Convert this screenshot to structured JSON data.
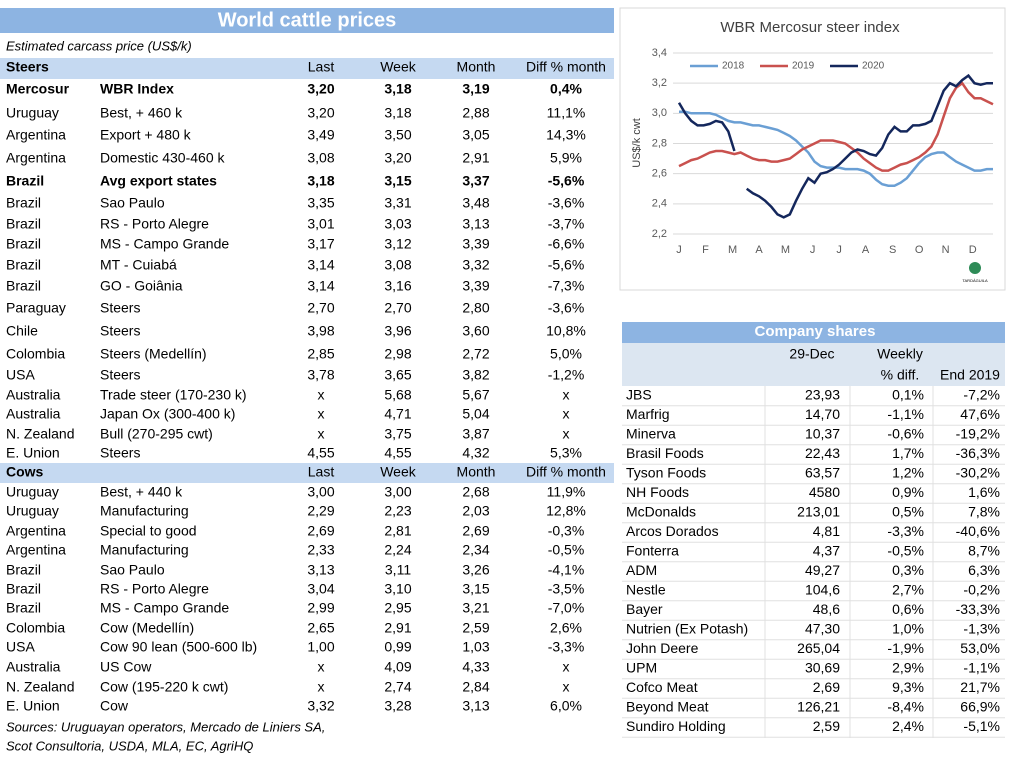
{
  "prices_table": {
    "title": "World cattle prices",
    "subtitle": "Estimated carcass price (US$/k)",
    "sections": [
      {
        "label": "Steers",
        "columns": [
          "Last",
          "Week",
          "Month",
          "Diff % month"
        ],
        "bold_rows": [
          0,
          4
        ],
        "rows": [
          [
            "Mercosur",
            "WBR Index",
            "3,20",
            "3,18",
            "3,19",
            "0,4%"
          ],
          [
            "Uruguay",
            "Best, + 460 k",
            "3,20",
            "3,18",
            "2,88",
            "11,1%"
          ],
          [
            "Argentina",
            "Export + 480 k",
            "3,49",
            "3,50",
            "3,05",
            "14,3%"
          ],
          [
            "Argentina",
            "Domestic 430-460 k",
            "3,08",
            "3,20",
            "2,91",
            "5,9%"
          ],
          [
            "Brazil",
            "Avg export states",
            "3,18",
            "3,15",
            "3,37",
            "-5,6%"
          ],
          [
            "Brazil",
            "Sao Paulo",
            "3,35",
            "3,31",
            "3,48",
            "-3,6%"
          ],
          [
            "Brazil",
            "RS - Porto Alegre",
            "3,01",
            "3,03",
            "3,13",
            "-3,7%"
          ],
          [
            "Brazil",
            "MS - Campo Grande",
            "3,17",
            "3,12",
            "3,39",
            "-6,6%"
          ],
          [
            "Brazil",
            "MT - Cuiabá",
            "3,14",
            "3,08",
            "3,32",
            "-5,6%"
          ],
          [
            "Brazil",
            "GO - Goiânia",
            "3,14",
            "3,16",
            "3,39",
            "-7,3%"
          ],
          [
            "Paraguay",
            "Steers",
            "2,70",
            "2,70",
            "2,80",
            "-3,6%"
          ],
          [
            "Chile",
            "Steers",
            "3,98",
            "3,96",
            "3,60",
            "10,8%"
          ],
          [
            "Colombia",
            "Steers (Medellín)",
            "2,85",
            "2,98",
            "2,72",
            "5,0%"
          ],
          [
            "USA",
            "Steers",
            "3,78",
            "3,65",
            "3,82",
            "-1,2%"
          ],
          [
            "Australia",
            "Trade steer (170-230 k)",
            "x",
            "5,68",
            "5,67",
            "x"
          ],
          [
            "Australia",
            "Japan Ox (300-400 k)",
            "x",
            "4,71",
            "5,04",
            "x"
          ],
          [
            "N. Zealand",
            "Bull (270-295 cwt)",
            "x",
            "3,75",
            "3,87",
            "x"
          ],
          [
            "E. Union",
            "Steers",
            "4,55",
            "4,55",
            "4,32",
            "5,3%"
          ]
        ]
      },
      {
        "label": "Cows",
        "columns": [
          "Last",
          "Week",
          "Month",
          "Diff % month"
        ],
        "bold_rows": [],
        "rows": [
          [
            "Uruguay",
            "Best, + 440 k",
            "3,00",
            "3,00",
            "2,68",
            "11,9%"
          ],
          [
            "Uruguay",
            "Manufacturing",
            "2,29",
            "2,23",
            "2,03",
            "12,8%"
          ],
          [
            "Argentina",
            "Special to good",
            "2,69",
            "2,81",
            "2,69",
            "-0,3%"
          ],
          [
            "Argentina",
            "Manufacturing",
            "2,33",
            "2,24",
            "2,34",
            "-0,5%"
          ],
          [
            "Brazil",
            "Sao Paulo",
            "3,13",
            "3,11",
            "3,26",
            "-4,1%"
          ],
          [
            "Brazil",
            "RS - Porto Alegre",
            "3,04",
            "3,10",
            "3,15",
            "-3,5%"
          ],
          [
            "Brazil",
            "MS - Campo Grande",
            "2,99",
            "2,95",
            "3,21",
            "-7,0%"
          ],
          [
            "Colombia",
            "Cow (Medellín)",
            "2,65",
            "2,91",
            "2,59",
            "2,6%"
          ],
          [
            "USA",
            "Cow 90 lean (500-600 lb)",
            "1,00",
            "0,99",
            "1,03",
            "-3,3%"
          ],
          [
            "Australia",
            "US Cow",
            "x",
            "4,09",
            "4,33",
            "x"
          ],
          [
            "N. Zealand",
            "Cow (195-220 k cwt)",
            "x",
            "2,74",
            "2,84",
            "x"
          ],
          [
            "E. Union",
            "Cow",
            "3,32",
            "3,28",
            "3,13",
            "6,0%"
          ]
        ]
      }
    ],
    "sources": [
      "Sources: Uruguayan operators, Mercado de Liniers SA,",
      "Scot Consultoria, USDA, MLA, EC, AgriHQ"
    ]
  },
  "chart_data": {
    "type": "line",
    "title": "WBR Mercosur steer index",
    "y_label": "US$/k cwt",
    "logo": "TARDÁGUILA",
    "grid": true,
    "legend": "top",
    "x": [
      1,
      2,
      3,
      4,
      5,
      6,
      7,
      8,
      9,
      10,
      11,
      12,
      13,
      14,
      15,
      16,
      17,
      18,
      19,
      20,
      21,
      22,
      23,
      24,
      25,
      26,
      27,
      28,
      29,
      30,
      31,
      32,
      33,
      34,
      35,
      36,
      37,
      38,
      39,
      40,
      41,
      42,
      43,
      44,
      45,
      46,
      47,
      48,
      49,
      50,
      51,
      52
    ],
    "xlim": [
      1,
      52
    ],
    "xticks": [
      {
        "value": 1,
        "label": "J"
      },
      {
        "value": 5.3,
        "label": "F"
      },
      {
        "value": 9.7,
        "label": "M"
      },
      {
        "value": 14,
        "label": "A"
      },
      {
        "value": 18.3,
        "label": "M"
      },
      {
        "value": 22.7,
        "label": "J"
      },
      {
        "value": 27,
        "label": "J"
      },
      {
        "value": 31.3,
        "label": "A"
      },
      {
        "value": 35.7,
        "label": "S"
      },
      {
        "value": 40,
        "label": "O"
      },
      {
        "value": 44.3,
        "label": "N"
      },
      {
        "value": 48.7,
        "label": "D"
      }
    ],
    "ylim": [
      2.2,
      3.4
    ],
    "yticks": [
      {
        "value": 2.2,
        "label": "2,2"
      },
      {
        "value": 2.4,
        "label": "2,4"
      },
      {
        "value": 2.6,
        "label": "2,6"
      },
      {
        "value": 2.8,
        "label": "2,8"
      },
      {
        "value": 3.0,
        "label": "3,0"
      },
      {
        "value": 3.2,
        "label": "3,2"
      },
      {
        "value": 3.4,
        "label": "3,4"
      }
    ],
    "series": [
      {
        "name": "2018",
        "color": "#6a9fd4",
        "values": [
          3.01,
          3.01,
          3.0,
          3.0,
          3.0,
          3.0,
          2.99,
          2.97,
          2.95,
          2.94,
          2.94,
          2.93,
          2.92,
          2.92,
          2.91,
          2.9,
          2.89,
          2.87,
          2.85,
          2.82,
          2.78,
          2.74,
          2.68,
          2.65,
          2.64,
          2.64,
          2.64,
          2.63,
          2.63,
          2.63,
          2.62,
          2.6,
          2.56,
          2.53,
          2.52,
          2.52,
          2.54,
          2.57,
          2.62,
          2.67,
          2.71,
          2.73,
          2.74,
          2.74,
          2.71,
          2.68,
          2.66,
          2.64,
          2.62,
          2.62,
          2.63,
          2.63
        ]
      },
      {
        "name": "2019",
        "color": "#c9514e",
        "values": [
          2.65,
          2.67,
          2.69,
          2.7,
          2.72,
          2.74,
          2.75,
          2.75,
          2.74,
          2.73,
          2.74,
          2.72,
          2.7,
          2.69,
          2.69,
          2.68,
          2.68,
          2.69,
          2.7,
          2.73,
          2.76,
          2.78,
          2.8,
          2.82,
          2.82,
          2.82,
          2.81,
          2.8,
          2.77,
          2.74,
          2.7,
          2.67,
          2.64,
          2.62,
          2.62,
          2.64,
          2.66,
          2.67,
          2.69,
          2.71,
          2.74,
          2.78,
          2.86,
          2.98,
          3.1,
          3.17,
          3.2,
          3.14,
          3.1,
          3.1,
          3.08,
          3.06
        ]
      },
      {
        "name": "2020",
        "color": "#14275c",
        "values": [
          3.07,
          3.0,
          2.95,
          2.92,
          2.92,
          2.93,
          2.95,
          2.94,
          2.88,
          2.75,
          null,
          2.5,
          2.47,
          2.45,
          2.42,
          2.38,
          2.33,
          2.31,
          2.33,
          2.42,
          2.5,
          2.57,
          2.54,
          2.6,
          2.61,
          2.63,
          2.66,
          2.7,
          2.74,
          2.76,
          2.75,
          2.73,
          2.72,
          2.77,
          2.86,
          2.91,
          2.88,
          2.88,
          2.92,
          2.92,
          2.93,
          2.95,
          3.05,
          3.15,
          3.2,
          3.18,
          3.22,
          3.25,
          3.2,
          3.19,
          3.2,
          3.2
        ]
      }
    ]
  },
  "company_table": {
    "title": "Company shares",
    "header_top": [
      "29-Dec",
      "Weekly"
    ],
    "header_bottom": [
      "% diff.",
      "End 2019"
    ],
    "rows": [
      [
        "JBS",
        "23,93",
        "0,1%",
        "-7,2%"
      ],
      [
        "Marfrig",
        "14,70",
        "-1,1%",
        "47,6%"
      ],
      [
        "Minerva",
        "10,37",
        "-0,6%",
        "-19,2%"
      ],
      [
        "Brasil Foods",
        "22,43",
        "1,7%",
        "-36,3%"
      ],
      [
        "Tyson Foods",
        "63,57",
        "1,2%",
        "-30,2%"
      ],
      [
        "NH Foods",
        "4580",
        "0,9%",
        "1,6%"
      ],
      [
        "McDonalds",
        "213,01",
        "0,5%",
        "7,8%"
      ],
      [
        "Arcos Dorados",
        "4,81",
        "-3,3%",
        "-40,6%"
      ],
      [
        "Fonterra",
        "4,37",
        "-0,5%",
        "8,7%"
      ],
      [
        "ADM",
        "49,27",
        "0,3%",
        "6,3%"
      ],
      [
        "Nestle",
        "104,6",
        "2,7%",
        "-0,2%"
      ],
      [
        "Bayer",
        "48,6",
        "0,6%",
        "-33,3%"
      ],
      [
        "Nutrien (Ex Potash)",
        "47,30",
        "1,0%",
        "-1,3%"
      ],
      [
        "John Deere",
        "265,04",
        "-1,9%",
        "53,0%"
      ],
      [
        "UPM",
        "30,69",
        "2,9%",
        "-1,1%"
      ],
      [
        "Cofco Meat",
        "2,69",
        "9,3%",
        "21,7%"
      ],
      [
        "Beyond Meat",
        "126,21",
        "-8,4%",
        "66,9%"
      ],
      [
        "Sundiro Holding",
        "2,59",
        "2,4%",
        "-5,1%"
      ]
    ]
  }
}
